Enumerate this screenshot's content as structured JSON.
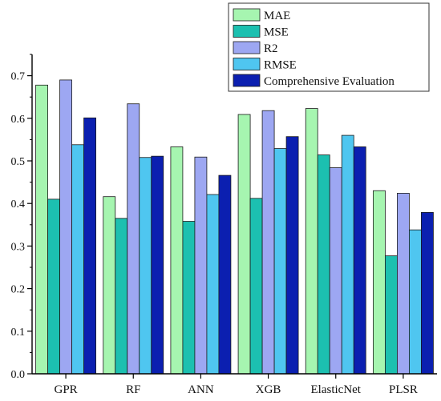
{
  "chart_data": {
    "type": "bar",
    "title": "",
    "xlabel": "",
    "ylabel": "",
    "categories": [
      "GPR",
      "RF",
      "ANN",
      "XGB",
      "ElasticNet",
      "PLSR"
    ],
    "ylim": [
      0,
      0.75
    ],
    "yticks": [
      0.0,
      0.1,
      0.2,
      0.3,
      0.4,
      0.5,
      0.6,
      0.7
    ],
    "ytick_labels": [
      "0.0",
      "0.1",
      "0.2",
      "0.3",
      "0.4",
      "0.5",
      "0.6",
      "0.7"
    ],
    "grid": false,
    "legend_position": "top-right",
    "series": [
      {
        "name": "MAE",
        "color": "#a6f5b0",
        "values": [
          0.678,
          0.416,
          0.533,
          0.609,
          0.623,
          0.43
        ]
      },
      {
        "name": "MSE",
        "color": "#1cc0b0",
        "values": [
          0.41,
          0.365,
          0.358,
          0.412,
          0.514,
          0.277
        ]
      },
      {
        "name": "R2",
        "color": "#9da7f2",
        "values": [
          0.69,
          0.634,
          0.509,
          0.618,
          0.484,
          0.424
        ]
      },
      {
        "name": "RMSE",
        "color": "#4fc6f0",
        "values": [
          0.538,
          0.508,
          0.421,
          0.529,
          0.56,
          0.338
        ]
      },
      {
        "name": "Comprehensive Evaluation",
        "color": "#0b1fb0",
        "values": [
          0.601,
          0.511,
          0.466,
          0.557,
          0.533,
          0.379
        ]
      }
    ]
  }
}
